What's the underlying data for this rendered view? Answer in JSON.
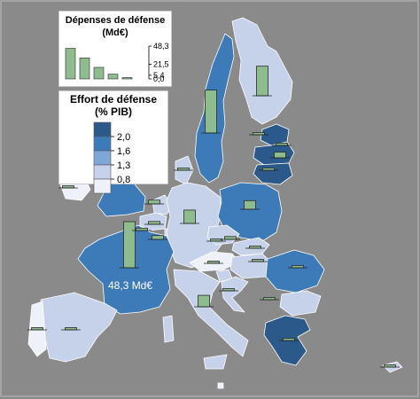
{
  "spending_legend": {
    "title_line1": "Dépenses de défense",
    "title_line2": "(Md€)",
    "ticks": [
      "48,3",
      "21,5",
      "5,4",
      "0,0"
    ],
    "tick_values": [
      48.3,
      21.5,
      5.4,
      0.0
    ],
    "example_bars": [
      45,
      31,
      17,
      7,
      2
    ]
  },
  "effort_legend": {
    "title_line1": "Effort de défense",
    "title_line2": "(% PIB)",
    "classes": [
      "2,0",
      "1,6",
      "1,3",
      "0,8"
    ],
    "class_colors": [
      "#2b5a8a",
      "#3d7bb8",
      "#7fa7d6",
      "#c6d2ea",
      "#eef1f8"
    ]
  },
  "annotation": {
    "label": "48,3 Md€"
  },
  "colors": {
    "sea": "#8a8a8a",
    "bar_fill": "#8ebc8e",
    "bar_stroke": "#2a2a2a",
    "border": "#ffffff"
  },
  "chart_data": {
    "type": "map",
    "bars_md_eur": [
      45,
      31,
      48.3,
      14,
      9,
      3,
      4,
      2,
      1,
      0.3,
      0.5,
      6,
      1.5,
      2.5,
      1.5,
      0.8,
      0.4,
      12,
      3,
      2,
      1.2,
      0.8,
      1,
      0.7,
      2,
      1.2,
      0.6,
      4,
      0.4
    ]
  }
}
